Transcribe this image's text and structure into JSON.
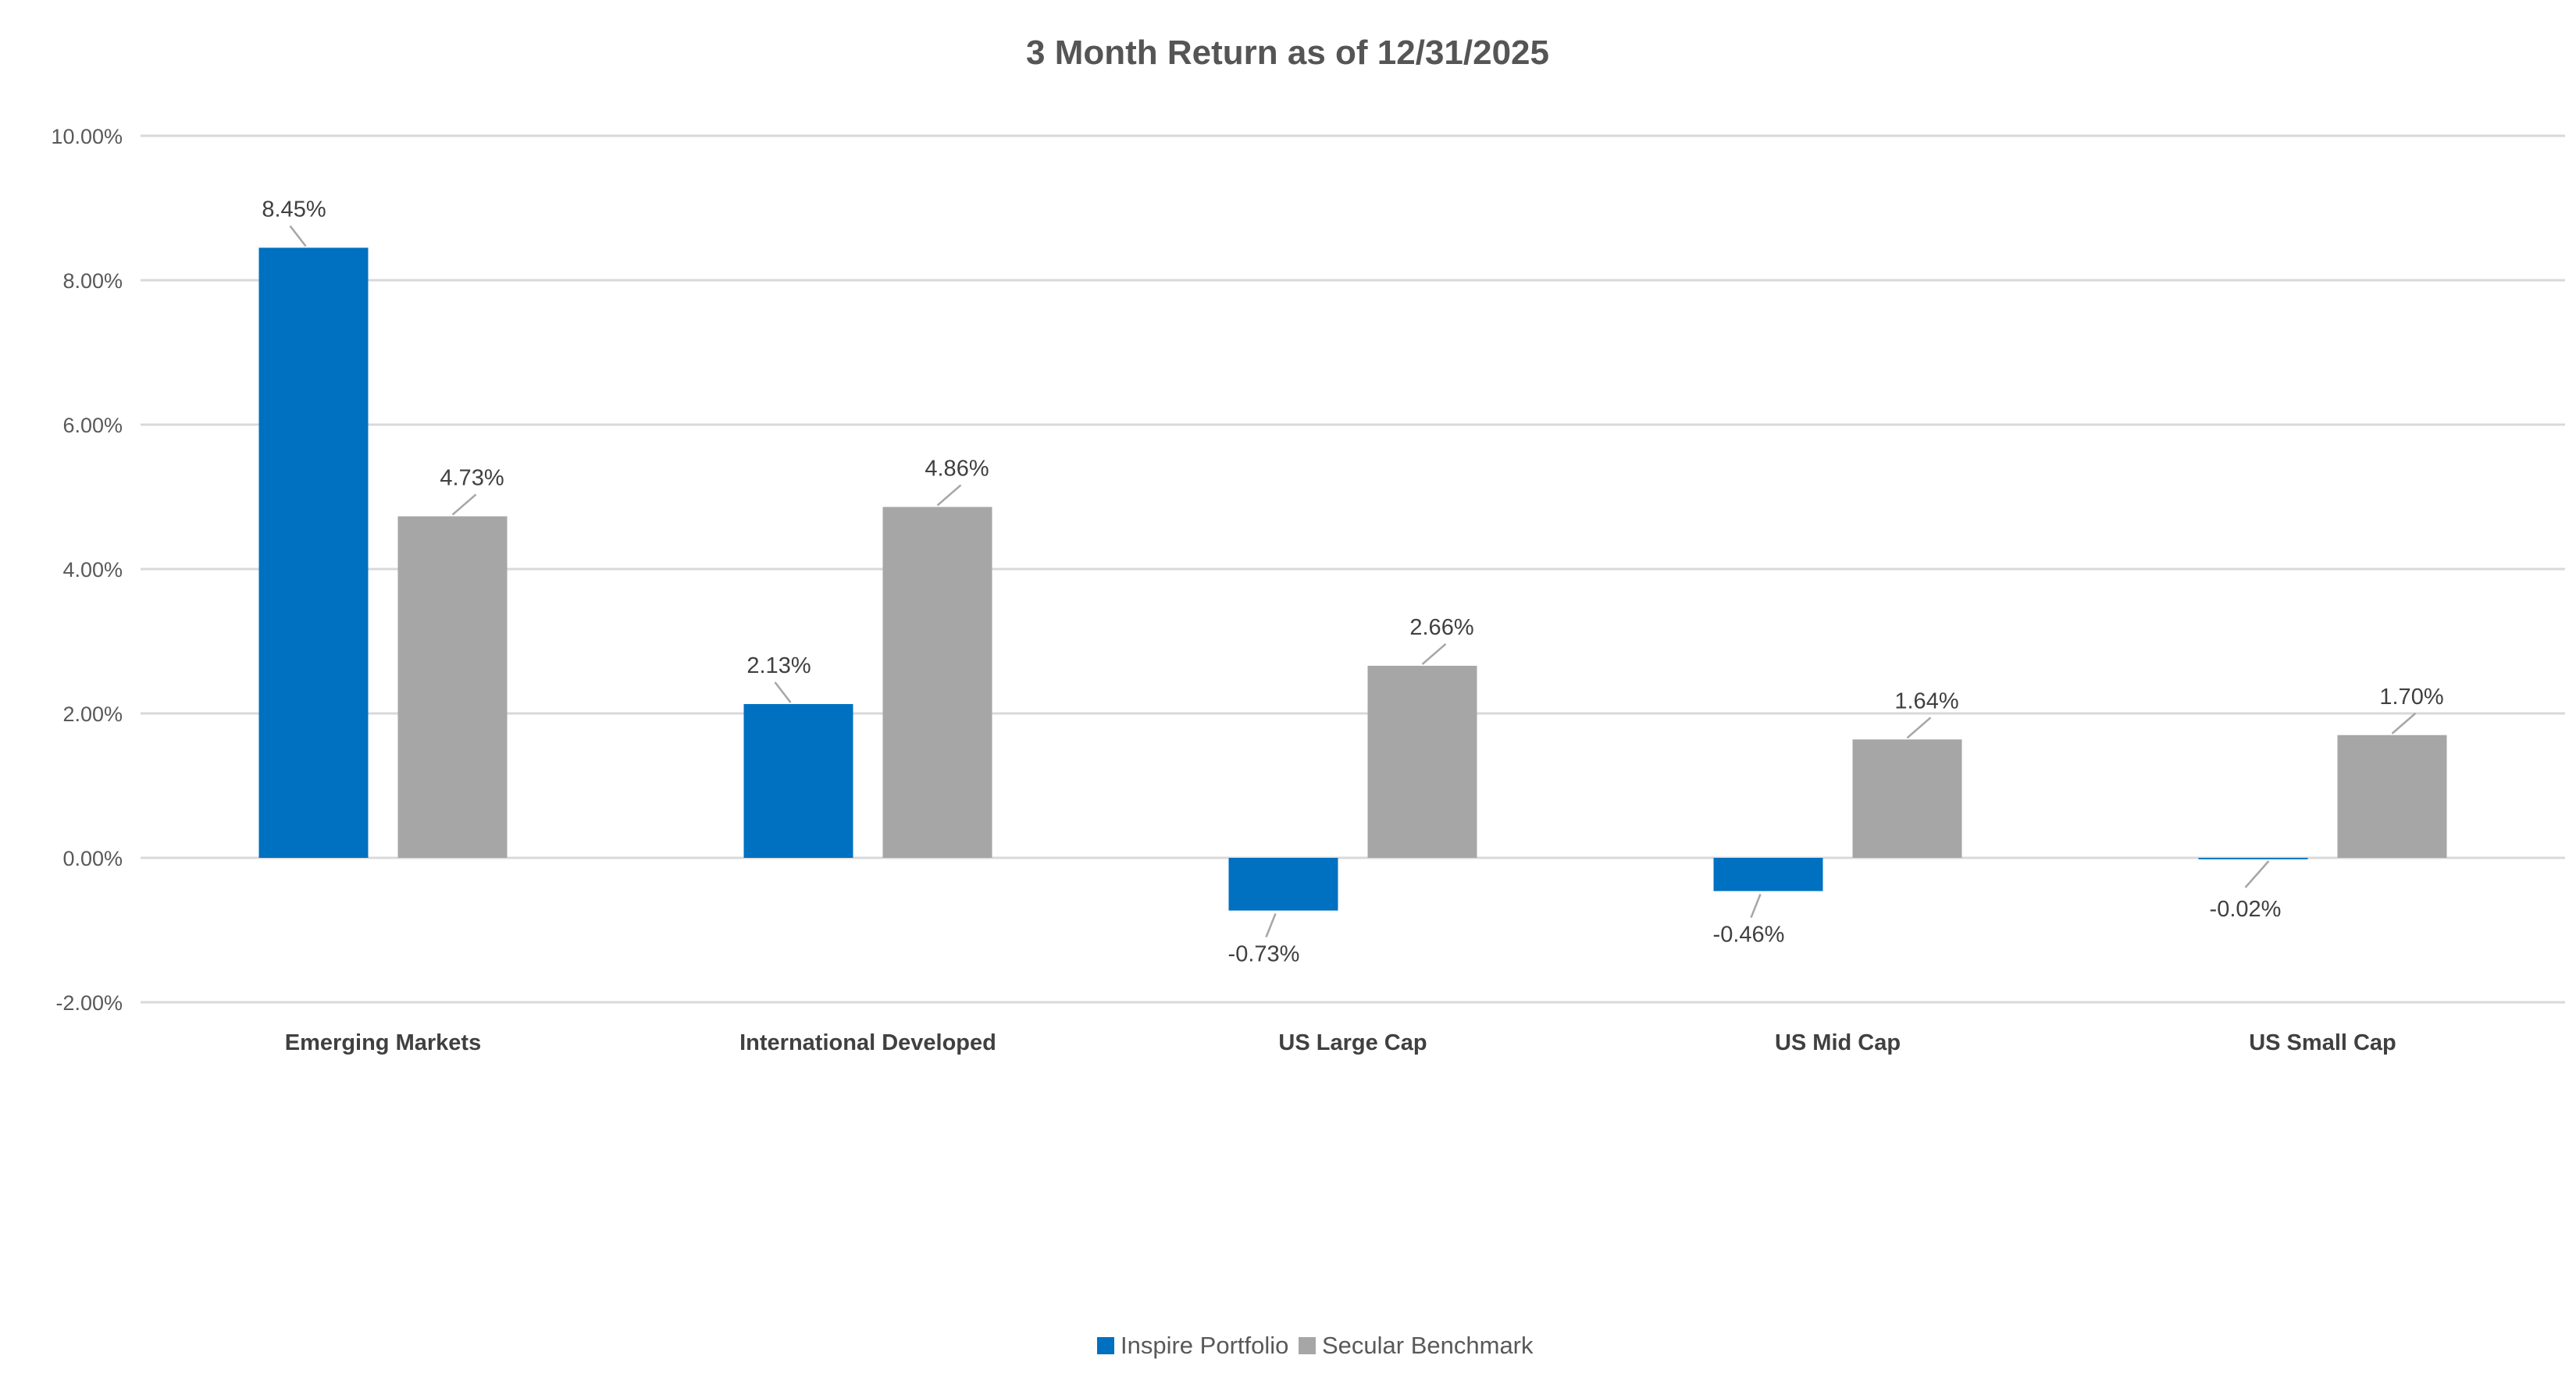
{
  "chart_data": {
    "type": "bar",
    "title": "3 Month Return as of 12/31/2025",
    "categories": [
      "Emerging Markets",
      "International Developed",
      "US Large Cap",
      "US Mid Cap",
      "US Small Cap"
    ],
    "series": [
      {
        "name": "Inspire Portfolio",
        "color": "#0070C0",
        "values": [
          8.45,
          2.13,
          -0.73,
          -0.46,
          -0.02
        ],
        "labels": [
          "8.45%",
          "2.13%",
          "-0.73%",
          "-0.46%",
          "-0.02%"
        ]
      },
      {
        "name": "Secular Benchmark",
        "color": "#A6A6A6",
        "values": [
          4.73,
          4.86,
          2.66,
          1.64,
          1.7
        ],
        "labels": [
          "4.73%",
          "4.86%",
          "2.66%",
          "1.64%",
          "1.70%"
        ]
      }
    ],
    "ylim": [
      -2,
      10
    ],
    "yticks": [
      10,
      8,
      6,
      4,
      2,
      0,
      -2
    ],
    "ytick_labels": [
      "10.00%",
      "8.00%",
      "6.00%",
      "4.00%",
      "2.00%",
      "0.00%",
      "-2.00%"
    ],
    "xlabel": "",
    "ylabel": "",
    "grid": true,
    "legend_position": "bottom"
  }
}
